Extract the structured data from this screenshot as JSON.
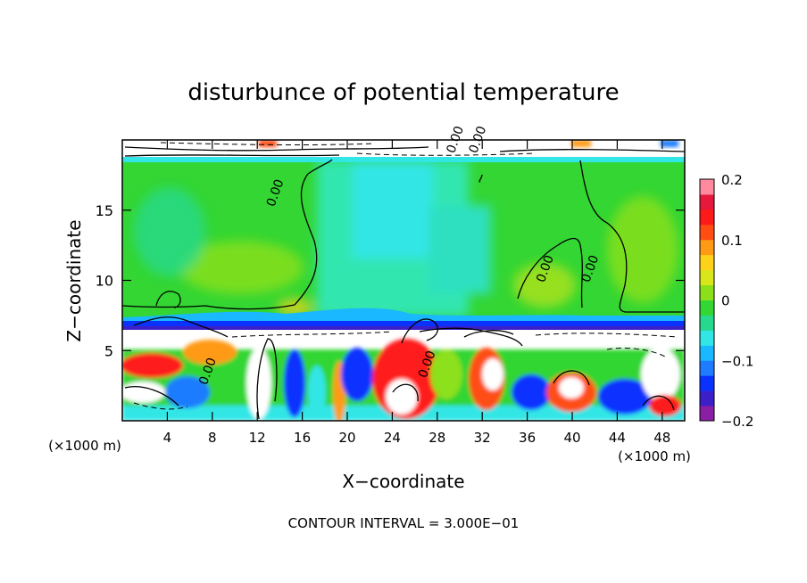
{
  "chart_data": {
    "type": "heatmap",
    "title": "disturbunce of potential temperature",
    "xlabel": "X−coordinate",
    "ylabel": "Z−coordinate",
    "x_unit_left": "(×1000 m)",
    "x_unit_right": "(×1000 m)",
    "xlim": [
      0,
      50
    ],
    "ylim": [
      0,
      20
    ],
    "xticks": [
      4,
      8,
      12,
      16,
      20,
      24,
      28,
      32,
      36,
      40,
      44,
      48
    ],
    "yticks": [
      5,
      10,
      15
    ],
    "colorbar": {
      "range": [
        -0.2,
        0.2
      ],
      "ticks": [
        {
          "value": 0.2,
          "label": "0.2"
        },
        {
          "value": 0.1,
          "label": "0.1"
        },
        {
          "value": 0,
          "label": "0"
        },
        {
          "value": -0.1,
          "label": "−0.1"
        },
        {
          "value": -0.2,
          "label": "−0.2"
        }
      ],
      "colors": [
        "#8a1fa6",
        "#3d1fc8",
        "#0a32ff",
        "#1f7bff",
        "#19b8ff",
        "#33e6e6",
        "#26d98c",
        "#33d633",
        "#8ce01a",
        "#d9e619",
        "#ffd21a",
        "#ff9a14",
        "#ff4d14",
        "#ff1a1a",
        "#e6193d",
        "#ff8aa0"
      ]
    },
    "contour_labels": [
      {
        "x": 13.5,
        "z": 15.2,
        "text": "0.00"
      },
      {
        "x": 37.5,
        "z": 9.8,
        "text": "0.00"
      },
      {
        "x": 41.5,
        "z": 9.8,
        "text": "0.00"
      },
      {
        "x": 7.5,
        "z": 2.5,
        "text": "0.00"
      },
      {
        "x": 27.0,
        "z": 3.0,
        "text": "0.00"
      },
      {
        "x": 29.5,
        "z": 19.0,
        "text": "0.00"
      },
      {
        "x": 31.5,
        "z": 19.0,
        "text": "0.00"
      }
    ],
    "annotation": "CONTOUR INTERVAL = 3.000E−01"
  }
}
